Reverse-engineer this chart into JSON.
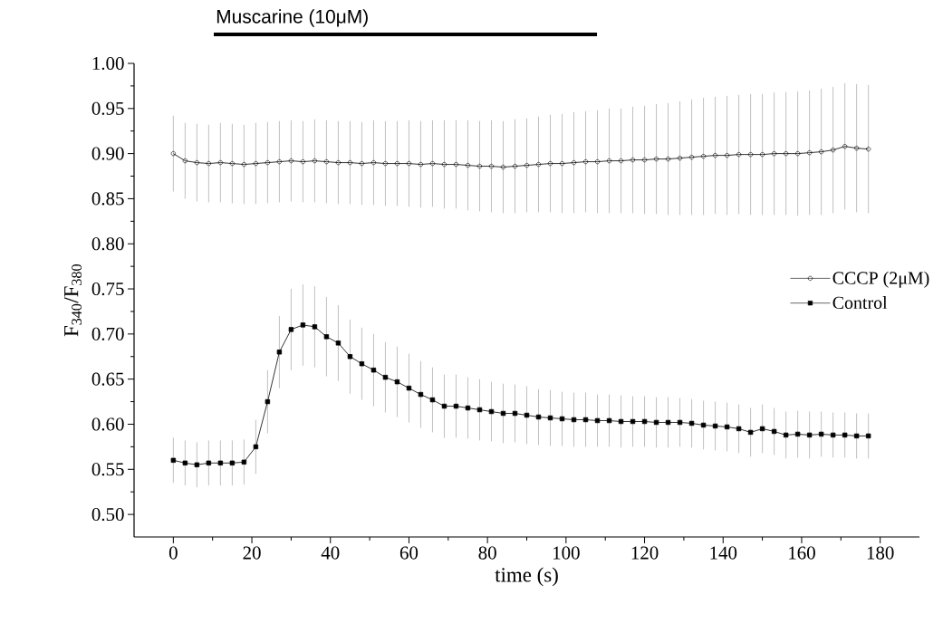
{
  "chart_data": {
    "type": "line",
    "xlabel": "time (s)",
    "ylabel": "F$_{340}$/F$_{380}$",
    "xlim": [
      -10,
      190
    ],
    "ylim": [
      0.475,
      1.0
    ],
    "xticks": [
      0,
      20,
      40,
      60,
      80,
      100,
      120,
      140,
      160,
      180
    ],
    "yticks": [
      {
        "value": 0.5,
        "label": "0.50"
      },
      {
        "value": 0.55,
        "label": "0.55"
      },
      {
        "value": 0.6,
        "label": "0.60"
      },
      {
        "value": 0.65,
        "label": "0.65"
      },
      {
        "value": 0.7,
        "label": "0.70"
      },
      {
        "value": 0.75,
        "label": "0.75"
      },
      {
        "value": 0.8,
        "label": "0.80"
      },
      {
        "value": 0.85,
        "label": "0.85"
      },
      {
        "value": 0.9,
        "label": "0.90"
      },
      {
        "value": 0.95,
        "label": "0.95"
      },
      {
        "value": 1.0,
        "label": "1.00"
      }
    ],
    "x": [
      0,
      3,
      6,
      9,
      12,
      15,
      18,
      21,
      24,
      27,
      30,
      33,
      36,
      39,
      42,
      45,
      48,
      51,
      54,
      57,
      60,
      63,
      66,
      69,
      72,
      75,
      78,
      81,
      84,
      87,
      90,
      93,
      96,
      99,
      102,
      105,
      108,
      111,
      114,
      117,
      120,
      123,
      126,
      129,
      132,
      135,
      138,
      141,
      144,
      147,
      150,
      153,
      156,
      159,
      162,
      165,
      168,
      171,
      174,
      177
    ],
    "legend": "right",
    "line_style": "solid",
    "annotations": [
      "Muscarine (10μM)"
    ],
    "series": [
      {
        "name": "CCCP (2μM)",
        "color": "#000000",
        "marker": "circle",
        "values": [
          0.9,
          0.892,
          0.89,
          0.889,
          0.89,
          0.889,
          0.888,
          0.889,
          0.89,
          0.891,
          0.892,
          0.891,
          0.892,
          0.891,
          0.89,
          0.89,
          0.889,
          0.89,
          0.889,
          0.889,
          0.889,
          0.888,
          0.889,
          0.888,
          0.888,
          0.887,
          0.886,
          0.886,
          0.885,
          0.886,
          0.887,
          0.888,
          0.889,
          0.889,
          0.89,
          0.891,
          0.891,
          0.892,
          0.892,
          0.893,
          0.893,
          0.894,
          0.894,
          0.895,
          0.896,
          0.897,
          0.898,
          0.898,
          0.899,
          0.899,
          0.899,
          0.9,
          0.9,
          0.9,
          0.901,
          0.902,
          0.904,
          0.908,
          0.906,
          0.905
        ],
        "errors": [
          0.042,
          0.042,
          0.043,
          0.043,
          0.044,
          0.044,
          0.044,
          0.045,
          0.045,
          0.045,
          0.045,
          0.045,
          0.046,
          0.046,
          0.046,
          0.046,
          0.046,
          0.047,
          0.047,
          0.047,
          0.048,
          0.048,
          0.048,
          0.049,
          0.049,
          0.05,
          0.05,
          0.051,
          0.051,
          0.052,
          0.052,
          0.053,
          0.054,
          0.055,
          0.056,
          0.056,
          0.057,
          0.058,
          0.058,
          0.059,
          0.06,
          0.061,
          0.062,
          0.063,
          0.064,
          0.065,
          0.065,
          0.066,
          0.066,
          0.067,
          0.067,
          0.068,
          0.068,
          0.069,
          0.069,
          0.07,
          0.07,
          0.07,
          0.071,
          0.071
        ]
      },
      {
        "name": "Control",
        "color": "#000000",
        "marker": "square",
        "values": [
          0.56,
          0.557,
          0.555,
          0.557,
          0.557,
          0.557,
          0.558,
          0.575,
          0.625,
          0.68,
          0.705,
          0.71,
          0.708,
          0.697,
          0.69,
          0.675,
          0.667,
          0.66,
          0.652,
          0.647,
          0.64,
          0.633,
          0.627,
          0.62,
          0.62,
          0.618,
          0.616,
          0.614,
          0.612,
          0.612,
          0.61,
          0.608,
          0.607,
          0.606,
          0.605,
          0.605,
          0.604,
          0.604,
          0.603,
          0.603,
          0.603,
          0.602,
          0.602,
          0.602,
          0.601,
          0.599,
          0.598,
          0.597,
          0.595,
          0.591,
          0.595,
          0.592,
          0.588,
          0.589,
          0.588,
          0.589,
          0.588,
          0.588,
          0.587,
          0.587
        ],
        "errors": [
          0.025,
          0.025,
          0.025,
          0.025,
          0.025,
          0.025,
          0.025,
          0.03,
          0.035,
          0.04,
          0.045,
          0.045,
          0.045,
          0.044,
          0.042,
          0.041,
          0.04,
          0.04,
          0.039,
          0.039,
          0.038,
          0.037,
          0.036,
          0.035,
          0.035,
          0.034,
          0.034,
          0.033,
          0.033,
          0.032,
          0.032,
          0.031,
          0.031,
          0.03,
          0.03,
          0.03,
          0.029,
          0.029,
          0.029,
          0.028,
          0.028,
          0.028,
          0.028,
          0.027,
          0.027,
          0.027,
          0.027,
          0.027,
          0.027,
          0.027,
          0.027,
          0.026,
          0.026,
          0.026,
          0.026,
          0.025,
          0.025,
          0.025,
          0.025,
          0.025
        ]
      }
    ]
  }
}
